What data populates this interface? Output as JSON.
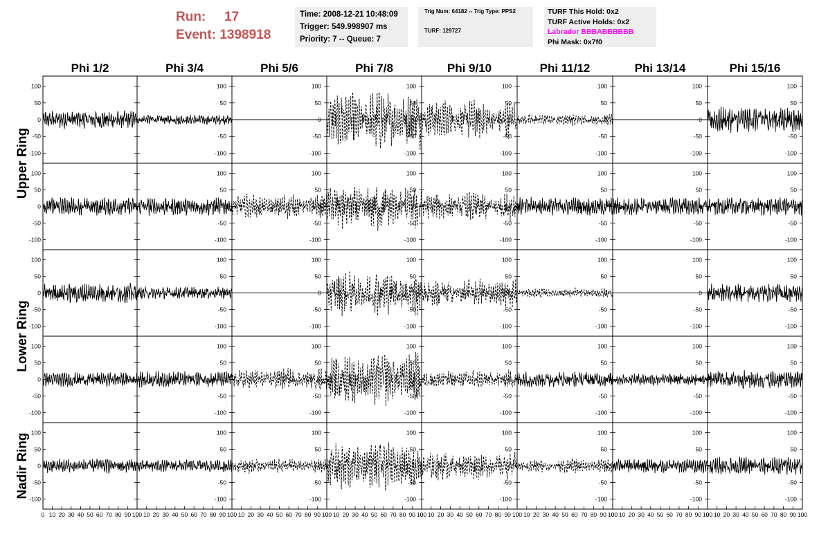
{
  "header": {
    "run_label": "Run:",
    "run_value": "17",
    "event_label": "Event:",
    "event_value": "1398918"
  },
  "info_box_1": {
    "time": "Time: 2008-12-21 10:48:09",
    "trigger": "Trigger: 549.998907 ms",
    "priority": "Priority: 7 -- Queue: 7"
  },
  "info_box_2": {
    "trig_num": "Trig Num: 64182 -- Trig Type: PPS2",
    "turf": "TURF: 129727"
  },
  "info_box_3": {
    "this_hold": "TURF This Hold: 0x2",
    "active_holds": "TURF Active Holds: 0x2",
    "labrador": "Labrador BBBABBBBBB",
    "phi_mask": "Phi Mask: 0x7f0"
  },
  "colors": {
    "header_red": "#c75454",
    "labrador_magenta": "#ff00ff",
    "box_gray": "#eeeeee",
    "trace": "#000000"
  },
  "chart_data": {
    "type": "line",
    "columns": [
      "Phi 1/2",
      "Phi 3/4",
      "Phi 5/6",
      "Phi 7/8",
      "Phi 9/10",
      "Phi 11/12",
      "Phi 13/14",
      "Phi 15/16"
    ],
    "rows": [
      "Upper Ring",
      "Upper Ring",
      "Lower Ring",
      "Lower Ring",
      "Nadir Ring"
    ],
    "row_labels": [
      "Upper Ring",
      "Lower Ring",
      "Nadir Ring"
    ],
    "xlim": [
      0,
      100
    ],
    "x_tick_labels": [
      "0",
      "10",
      "20",
      "30",
      "40",
      "50",
      "60",
      "70",
      "80",
      "90",
      "100"
    ],
    "ylim": [
      -130,
      130
    ],
    "y_tick_labels": [
      "100",
      "50",
      "0",
      "-50",
      "-100"
    ],
    "grid": false,
    "panel_styles": [
      [
        "solid",
        "solid",
        "flat",
        "dashed",
        "dashed",
        "dashed",
        "flat",
        "solid"
      ],
      [
        "solid",
        "solid",
        "dashed",
        "dashed",
        "dashed",
        "solid",
        "solid",
        "solid"
      ],
      [
        "solid",
        "solid",
        "flat",
        "dashed",
        "dashed",
        "dashed",
        "flat",
        "solid"
      ],
      [
        "solid",
        "solid",
        "dashed",
        "dashed",
        "dashed",
        "solid",
        "solid",
        "solid"
      ],
      [
        "solid",
        "solid",
        "dashed",
        "dashed",
        "dashed",
        "dashed",
        "solid",
        "solid"
      ]
    ],
    "panel_amplitude": [
      [
        18,
        10,
        0,
        60,
        40,
        12,
        0,
        25
      ],
      [
        18,
        18,
        25,
        50,
        30,
        18,
        18,
        18
      ],
      [
        20,
        12,
        0,
        45,
        30,
        10,
        0,
        18
      ],
      [
        14,
        16,
        22,
        55,
        20,
        16,
        12,
        18
      ],
      [
        14,
        12,
        15,
        50,
        28,
        14,
        14,
        18
      ]
    ]
  }
}
